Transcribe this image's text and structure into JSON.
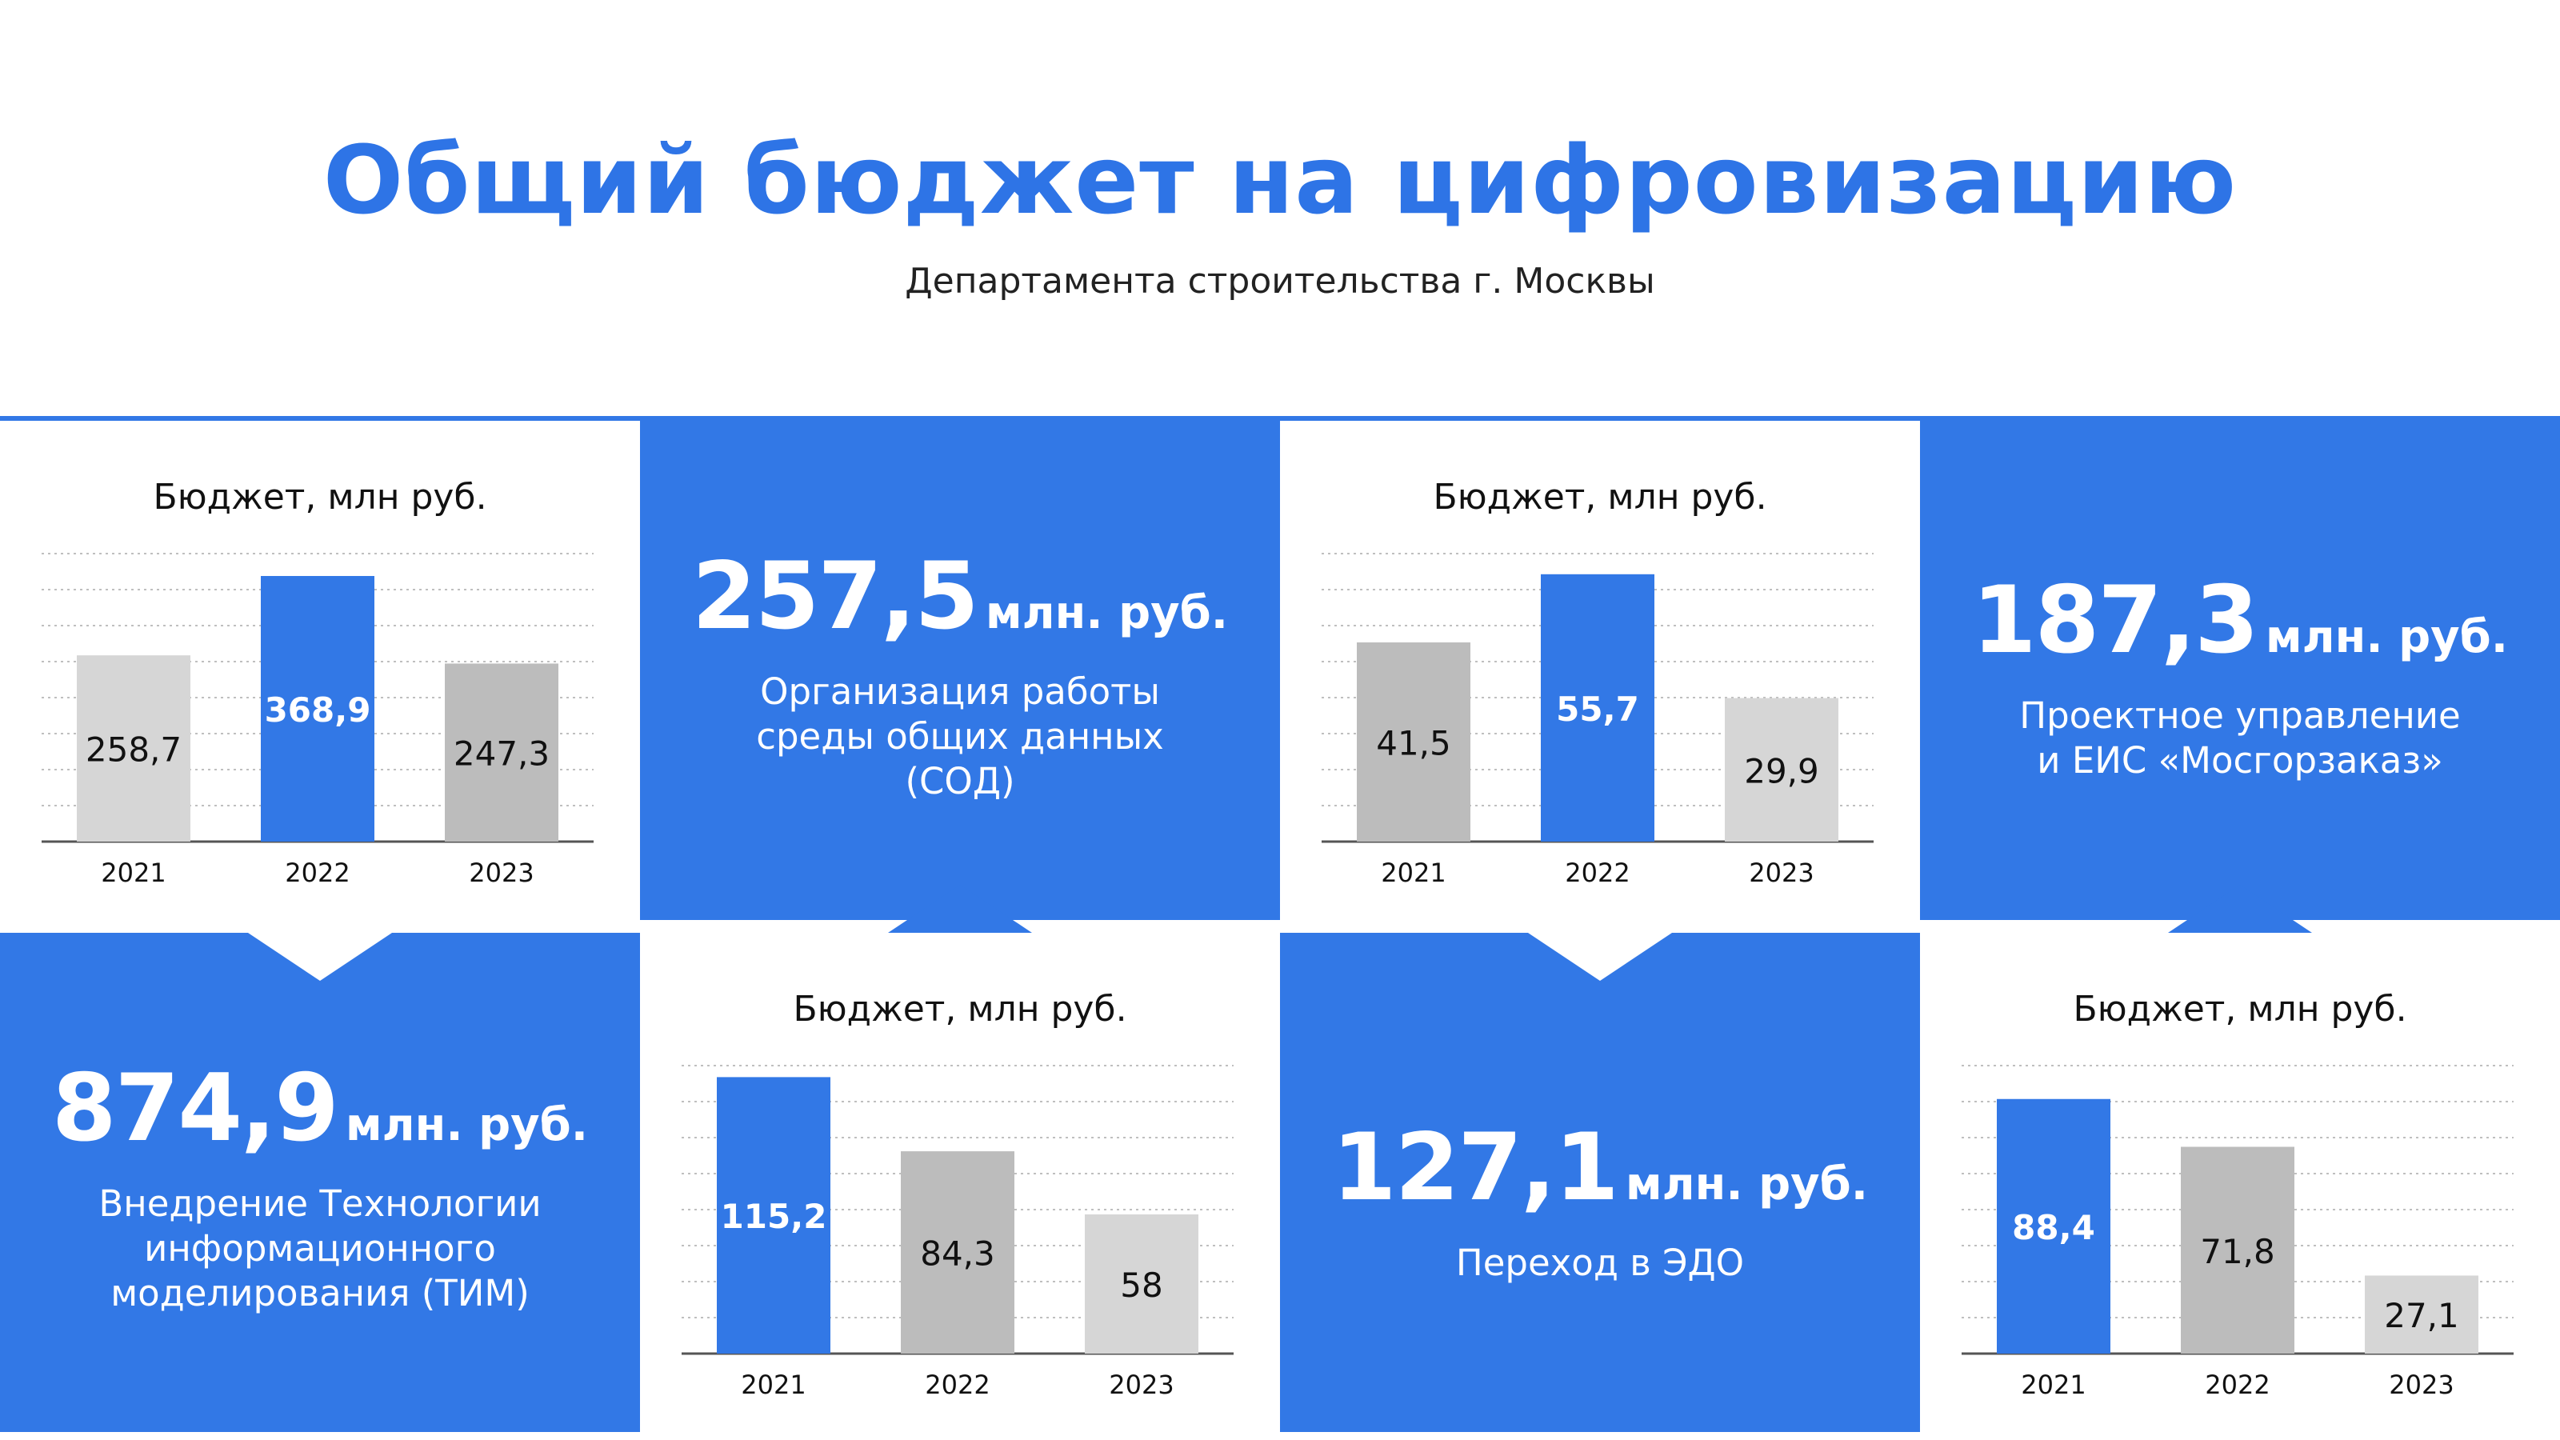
{
  "header": {
    "title": "Общий бюджет на цифровизацию",
    "subtitle": "Департамента строительства г. Москвы"
  },
  "colors": {
    "accent": "#3278e6",
    "bar_light": "#d6d6d6",
    "bar_mid": "#bcbcbc",
    "grid": "#bfbfbf"
  },
  "stats": [
    {
      "value": "257,5",
      "unit": "млн. руб.",
      "caption": "Организация работы\nсреды общих данных\n(СОД)"
    },
    {
      "value": "187,3",
      "unit": "млн. руб.",
      "caption": "Проектное управление\nи ЕИС «Мосгорзаказ»"
    },
    {
      "value": "874,9",
      "unit": "млн. руб.",
      "caption": "Внедрение Технологии\nинформационного\nмоделирования (ТИМ)"
    },
    {
      "value": "127,1",
      "unit": "млн. руб.",
      "caption": "Переход в ЭДО"
    }
  ],
  "chart_data": [
    {
      "type": "bar",
      "title": "Бюджет, млн руб.",
      "categories": [
        "2021",
        "2022",
        "2023"
      ],
      "values": [
        258.7,
        368.9,
        247.3
      ],
      "labels": [
        "258,7",
        "368,9",
        "247,3"
      ],
      "highlight_index": 1,
      "colors": [
        "#d6d6d6",
        "#3278e6",
        "#bcbcbc"
      ],
      "ylim": [
        0,
        400
      ],
      "grid": true
    },
    {
      "type": "bar",
      "title": "Бюджет, млн руб.",
      "categories": [
        "2021",
        "2022",
        "2023"
      ],
      "values": [
        41.5,
        55.7,
        29.9
      ],
      "labels": [
        "41,5",
        "55,7",
        "29,9"
      ],
      "highlight_index": 1,
      "colors": [
        "#bcbcbc",
        "#3278e6",
        "#d6d6d6"
      ],
      "ylim": [
        0,
        60
      ],
      "grid": true
    },
    {
      "type": "bar",
      "title": "Бюджет, млн руб.",
      "categories": [
        "2021",
        "2022",
        "2023"
      ],
      "values": [
        115.2,
        84.3,
        58
      ],
      "labels": [
        "115,2",
        "84,3",
        "58"
      ],
      "highlight_index": 0,
      "colors": [
        "#3278e6",
        "#bcbcbc",
        "#d6d6d6"
      ],
      "ylim": [
        0,
        120
      ],
      "grid": true
    },
    {
      "type": "bar",
      "title": "Бюджет, млн руб.",
      "categories": [
        "2021",
        "2022",
        "2023"
      ],
      "values": [
        88.4,
        71.8,
        27.1
      ],
      "labels": [
        "88,4",
        "71,8",
        "27,1"
      ],
      "highlight_index": 0,
      "colors": [
        "#3278e6",
        "#bcbcbc",
        "#d6d6d6"
      ],
      "ylim": [
        0,
        100
      ],
      "grid": true
    }
  ]
}
